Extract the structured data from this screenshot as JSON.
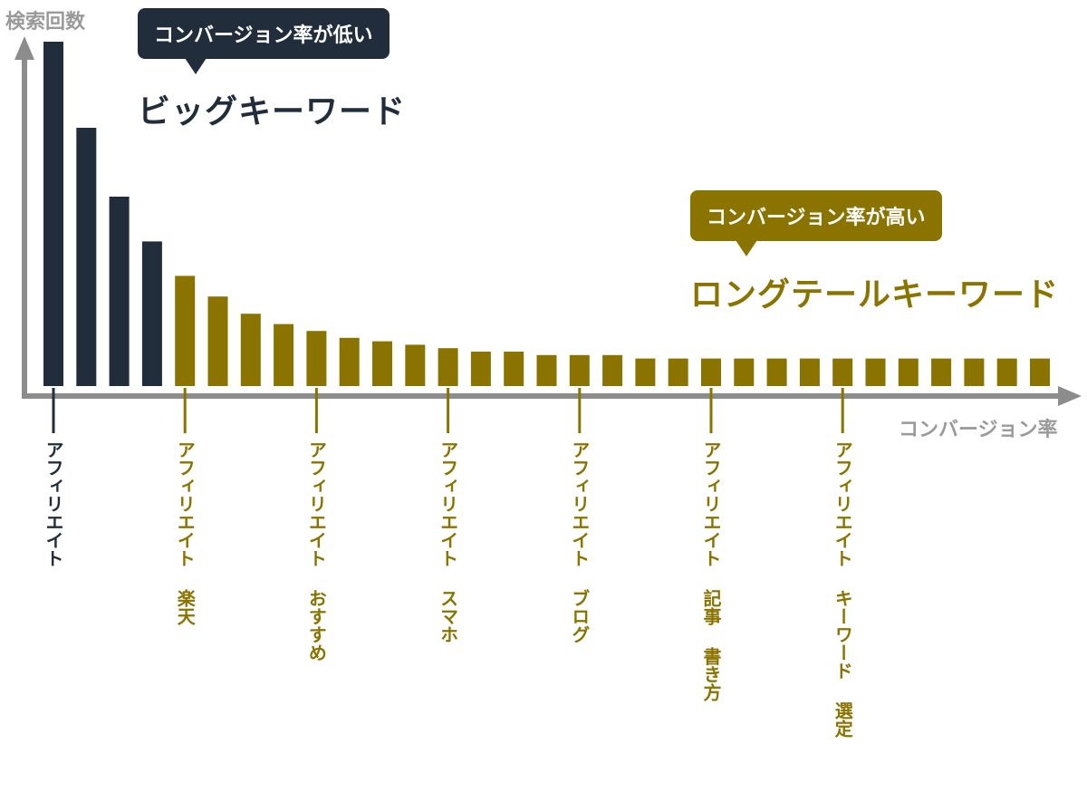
{
  "chart_data": {
    "type": "bar",
    "ylabel": "検索回数",
    "xlabel": "コンバージョン率",
    "values": [
      100,
      75,
      55,
      42,
      32,
      26,
      21,
      18,
      16,
      14,
      13,
      12,
      11,
      10,
      10,
      9,
      9,
      9,
      8,
      8,
      8,
      8,
      8,
      8,
      8,
      8,
      8,
      8,
      8,
      8,
      8
    ],
    "big_count": 4,
    "colors": {
      "big": "#222d3c",
      "long": "#8b7300",
      "axis": "#8c8c8c"
    },
    "tick_labels": [
      {
        "bar_index": 0,
        "text": "アフィリエイト",
        "group": "big"
      },
      {
        "bar_index": 4,
        "text": "アフィリエイト 楽天",
        "group": "long"
      },
      {
        "bar_index": 8,
        "text": "アフィリエイト おすすめ",
        "group": "long"
      },
      {
        "bar_index": 12,
        "text": "アフィリエイト スマホ",
        "group": "long"
      },
      {
        "bar_index": 16,
        "text": "アフィリエイト ブログ",
        "group": "long"
      },
      {
        "bar_index": 20,
        "text": "アフィリエイト 記事 書き方",
        "group": "long"
      },
      {
        "bar_index": 24,
        "text": "アフィリエイト キーワード 選定",
        "group": "long"
      }
    ]
  },
  "annotations": {
    "big": {
      "callout": "コンバージョン率が低い",
      "title": "ビッグキーワード"
    },
    "long": {
      "callout": "コンバージョン率が高い",
      "title": "ロングテールキーワード"
    }
  }
}
